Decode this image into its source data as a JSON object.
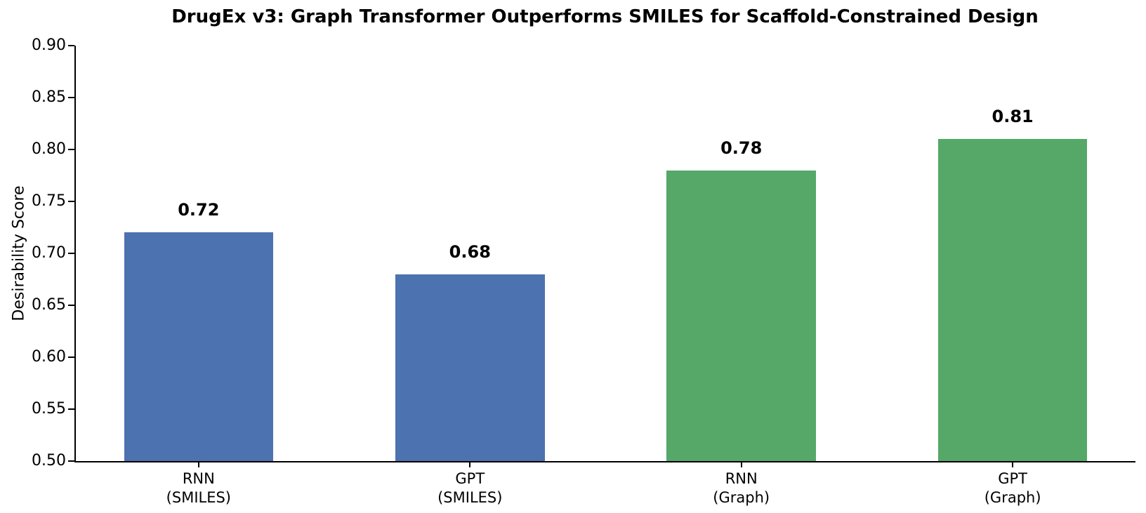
{
  "chart_data": {
    "type": "bar",
    "title": "DrugEx v3: Graph Transformer Outperforms SMILES for Scaffold-Constrained Design",
    "ylabel": "Desirability Score",
    "xlabel": "",
    "categories": [
      "RNN\n(SMILES)",
      "GPT\n(SMILES)",
      "RNN\n(Graph)",
      "GPT\n(Graph)"
    ],
    "values": [
      0.72,
      0.68,
      0.78,
      0.81
    ],
    "value_labels": [
      "0.72",
      "0.68",
      "0.78",
      "0.81"
    ],
    "bar_colors": [
      "#4C72B0",
      "#4C72B0",
      "#55A868",
      "#55A868"
    ],
    "ylim": [
      0.5,
      0.9
    ],
    "yticks": [
      "0.50",
      "0.55",
      "0.60",
      "0.65",
      "0.70",
      "0.75",
      "0.80",
      "0.85",
      "0.90"
    ],
    "grid": false,
    "legend": null
  },
  "colors": {
    "bar_blue": "#4C72B0",
    "bar_green": "#55A868",
    "axis": "#000000",
    "text": "#000000",
    "background": "#FFFFFF"
  }
}
